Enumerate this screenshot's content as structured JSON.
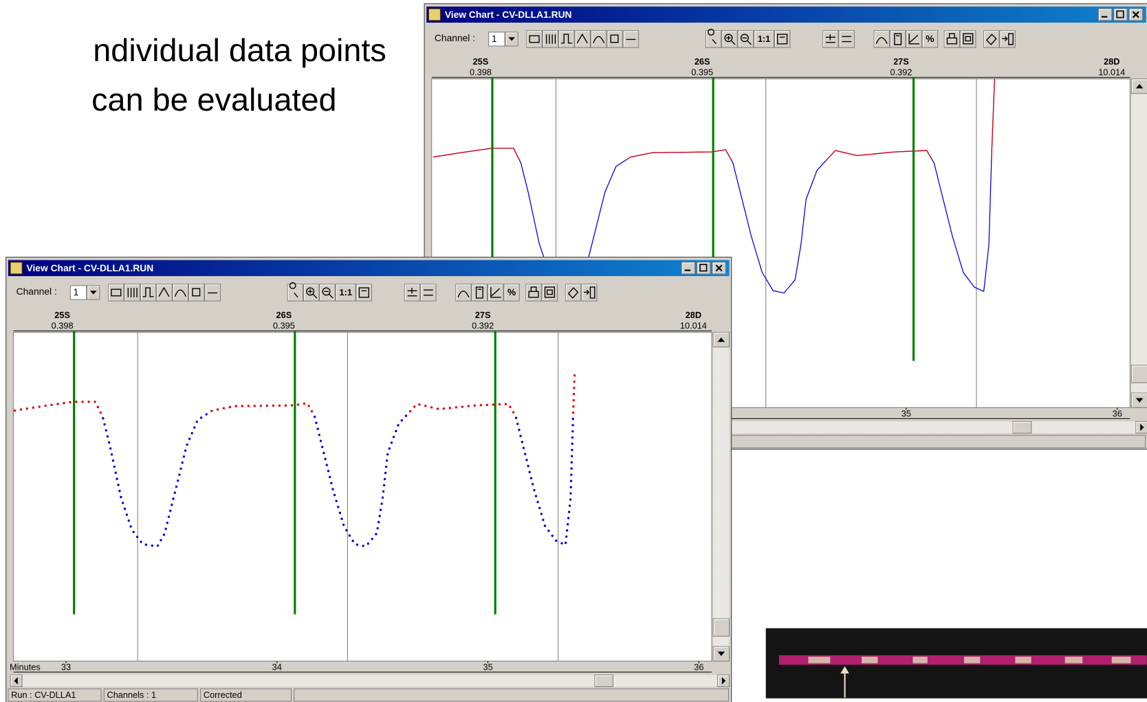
{
  "slide_text": [
    "ndividual data points",
    "can be evaluated"
  ],
  "windows": [
    {
      "title": "View Chart - CV-DLLA1.RUN",
      "channel_label": "Channel :",
      "channel": 1,
      "toolbar_text": [
        "1:1",
        "%"
      ],
      "markers": [
        {
          "name": "25S",
          "value": 0.398
        },
        {
          "name": "26S",
          "value": 0.395
        },
        {
          "name": "27S",
          "value": 0.392
        },
        {
          "name": "28D",
          "value": 10.014
        }
      ],
      "axis_ticks": [
        35,
        36
      ]
    },
    {
      "title": "View Chart - CV-DLLA1.RUN",
      "channel_label": "Channel :",
      "channel": 1,
      "toolbar_text": [
        "1:1",
        "%"
      ],
      "markers": [
        {
          "name": "25S",
          "value": 0.398
        },
        {
          "name": "26S",
          "value": 0.395
        },
        {
          "name": "27S",
          "value": 0.392
        },
        {
          "name": "28D",
          "value": 10.014
        }
      ],
      "axis_label": "Minutes",
      "axis_ticks": [
        33,
        34,
        35,
        36
      ],
      "status": [
        "Run : CV-DLLA1",
        "Channels : 1",
        "Corrected"
      ]
    }
  ]
}
